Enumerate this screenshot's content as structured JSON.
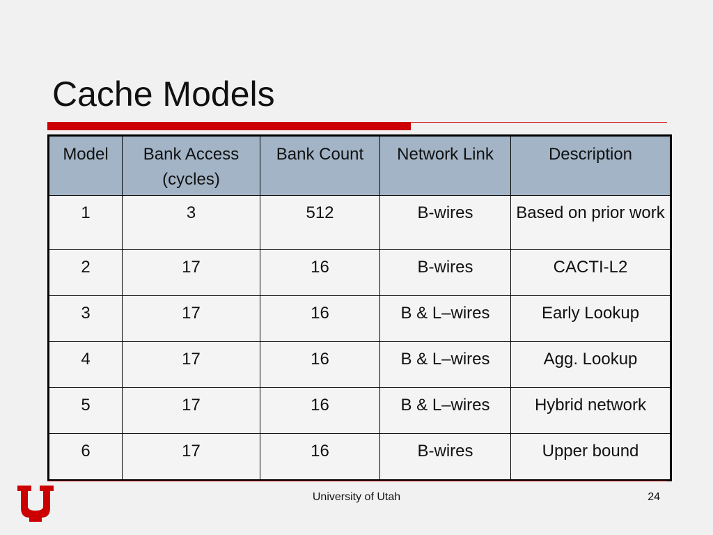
{
  "slide": {
    "title": "Cache Models",
    "footer": "University of Utah",
    "page_number": "24",
    "accent_color": "#cc0000",
    "header_color": "#a3b4c6"
  },
  "table": {
    "headers": [
      "Model",
      "Bank Access (cycles)",
      "Bank Count",
      "Network Link",
      "Description"
    ],
    "rows": [
      [
        "1",
        "3",
        "512",
        "B-wires",
        "Based on prior work"
      ],
      [
        "2",
        "17",
        "16",
        "B-wires",
        "CACTI-L2"
      ],
      [
        "3",
        "17",
        "16",
        "B & L–wires",
        "Early Lookup"
      ],
      [
        "4",
        "17",
        "16",
        "B & L–wires",
        "Agg. Lookup"
      ],
      [
        "5",
        "17",
        "16",
        "B & L–wires",
        "Hybrid network"
      ],
      [
        "6",
        "17",
        "16",
        "B-wires",
        "Upper bound"
      ]
    ]
  },
  "logo": {
    "icon": "university-u-logo-icon"
  }
}
